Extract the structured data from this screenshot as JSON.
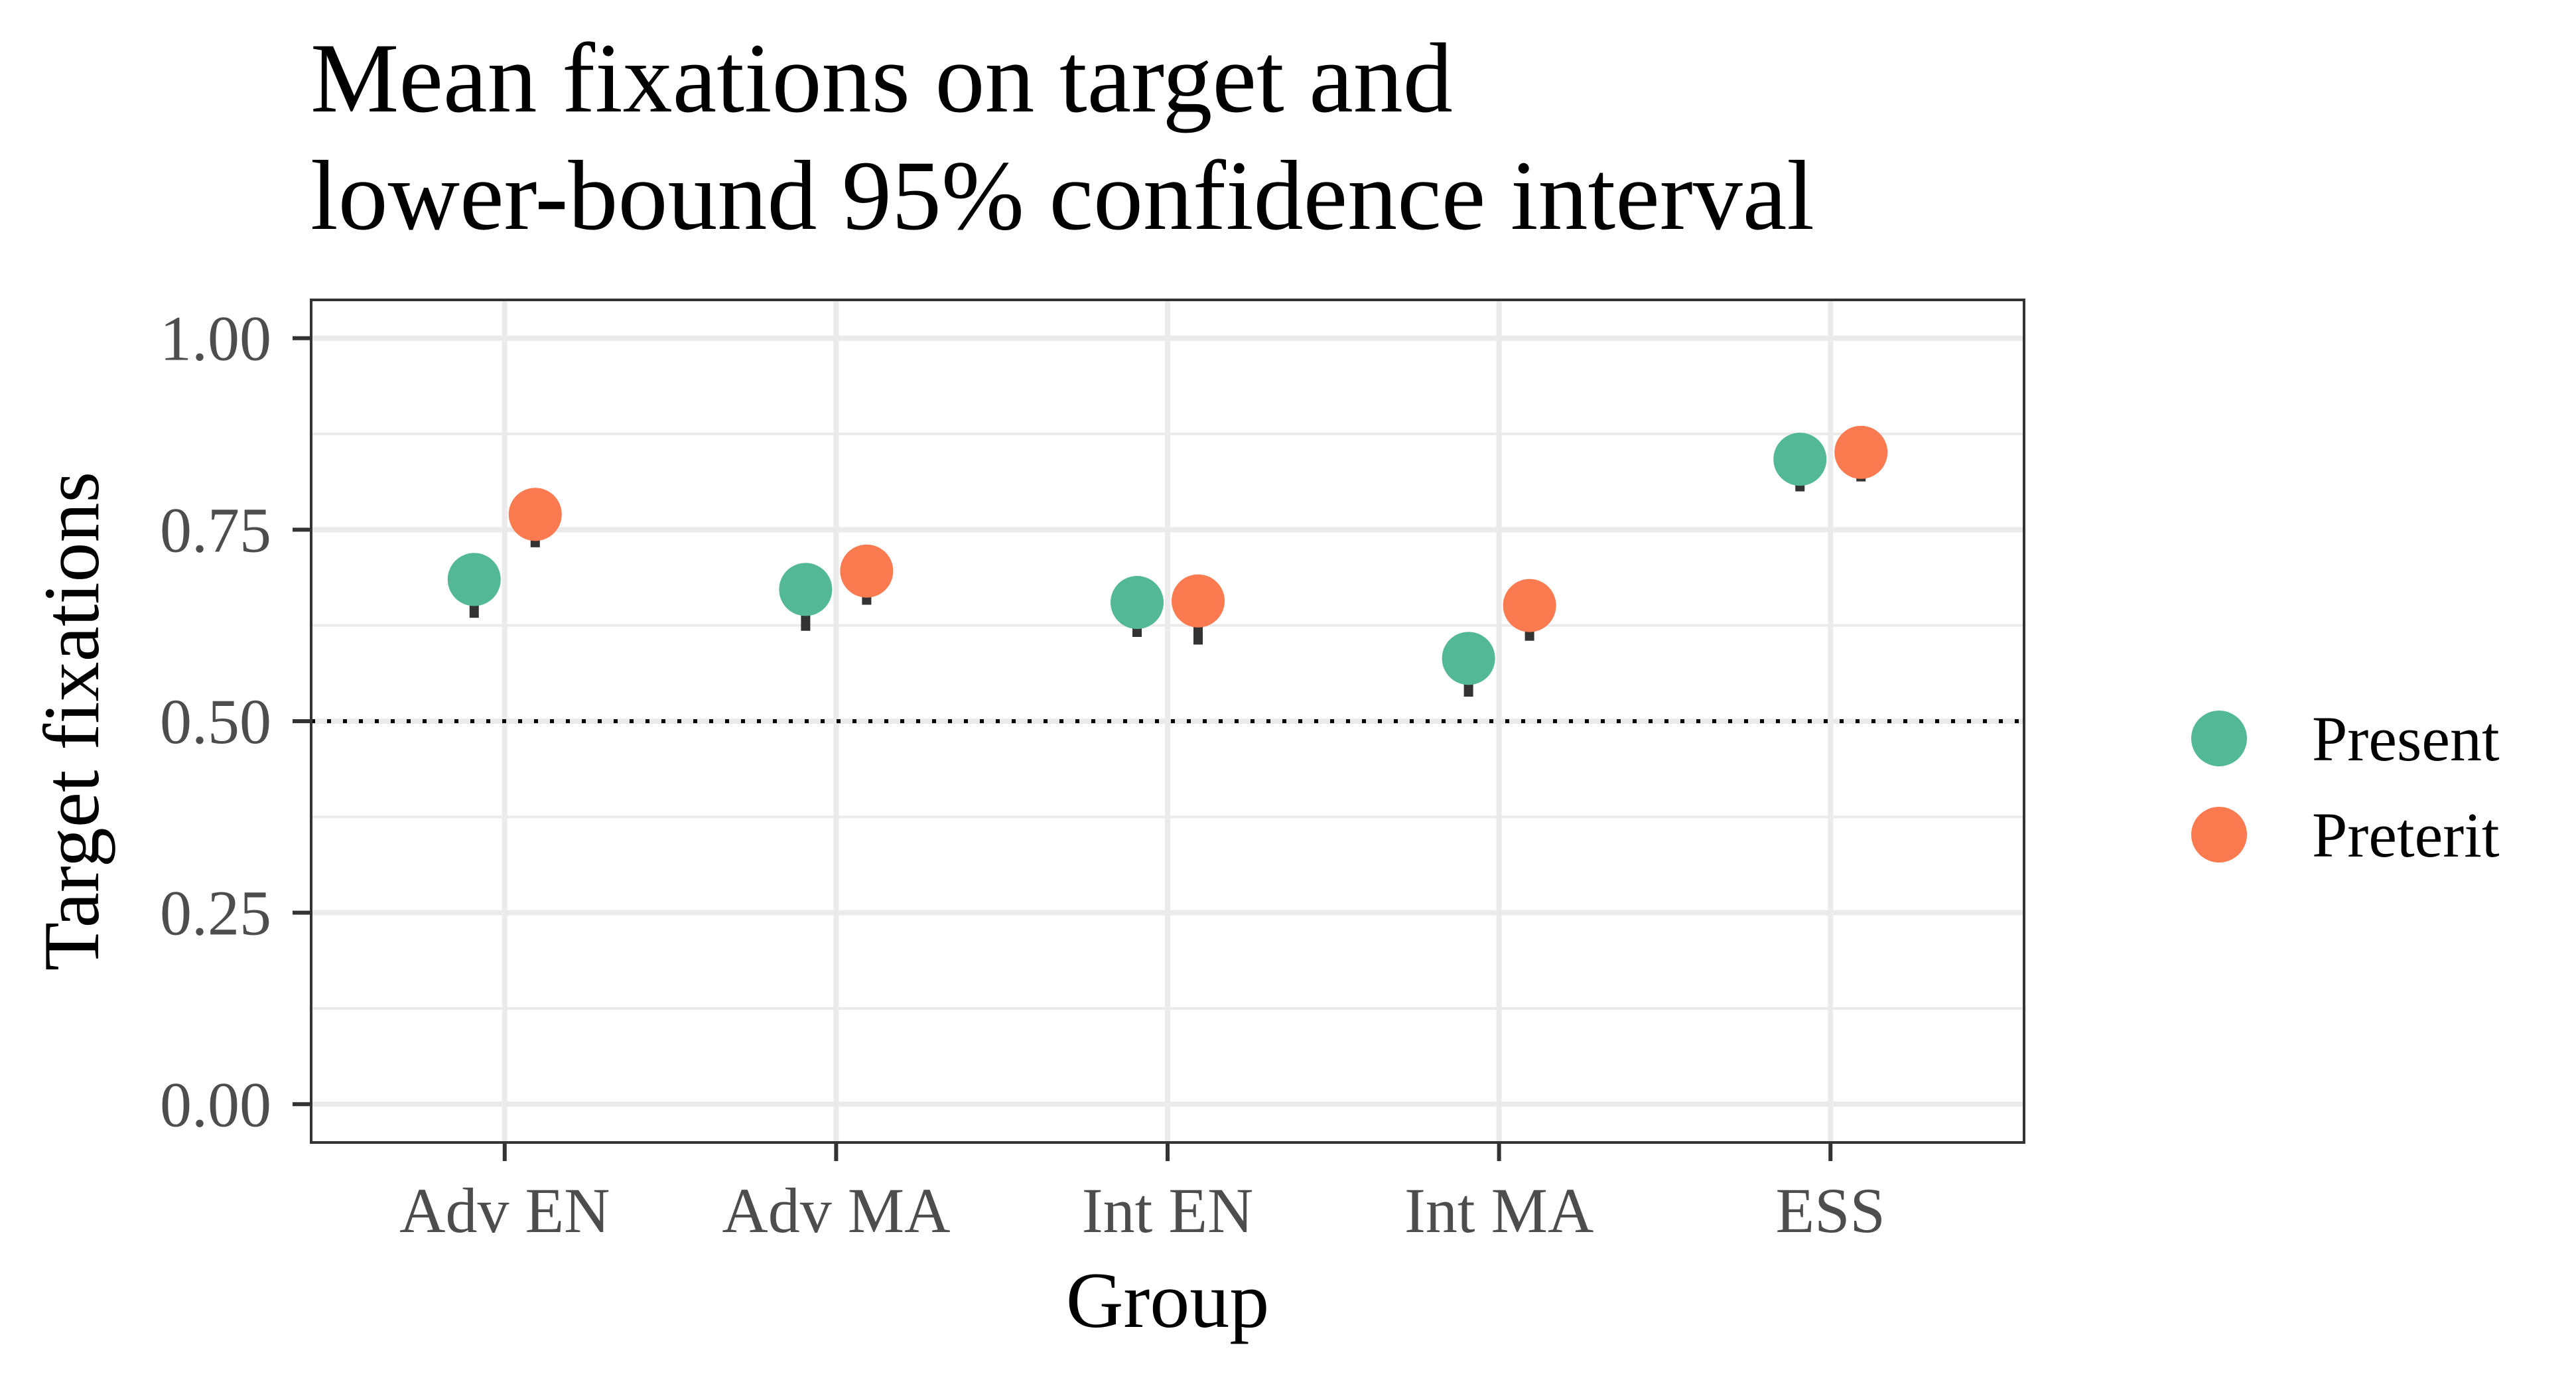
{
  "chart_data": {
    "type": "scatter",
    "title_lines": [
      "Mean fixations on target and",
      "lower-bound 95% confidence interval"
    ],
    "xlabel": "Group",
    "ylabel": "Target fixations",
    "categories": [
      "Adv EN",
      "Adv MA",
      "Int EN",
      "Int MA",
      "ESS"
    ],
    "ylim": [
      -0.05,
      1.05
    ],
    "yticks": [
      0.0,
      0.25,
      0.5,
      0.75,
      1.0
    ],
    "ytick_labels": [
      "0.00",
      "0.25",
      "0.50",
      "0.75",
      "1.00"
    ],
    "reference_line": {
      "y": 0.5,
      "style": "dotted"
    },
    "grid": true,
    "legend_position": "right",
    "series": [
      {
        "name": "Present",
        "color": "#52b896",
        "values": [
          0.685,
          0.672,
          0.655,
          0.582,
          0.842
        ],
        "lower_ci": [
          0.635,
          0.618,
          0.61,
          0.532,
          0.8
        ]
      },
      {
        "name": "Preterit",
        "color": "#fb7a4f",
        "values": [
          0.77,
          0.696,
          0.657,
          0.651,
          0.851
        ],
        "lower_ci": [
          0.727,
          0.652,
          0.6,
          0.605,
          0.813
        ]
      }
    ]
  }
}
